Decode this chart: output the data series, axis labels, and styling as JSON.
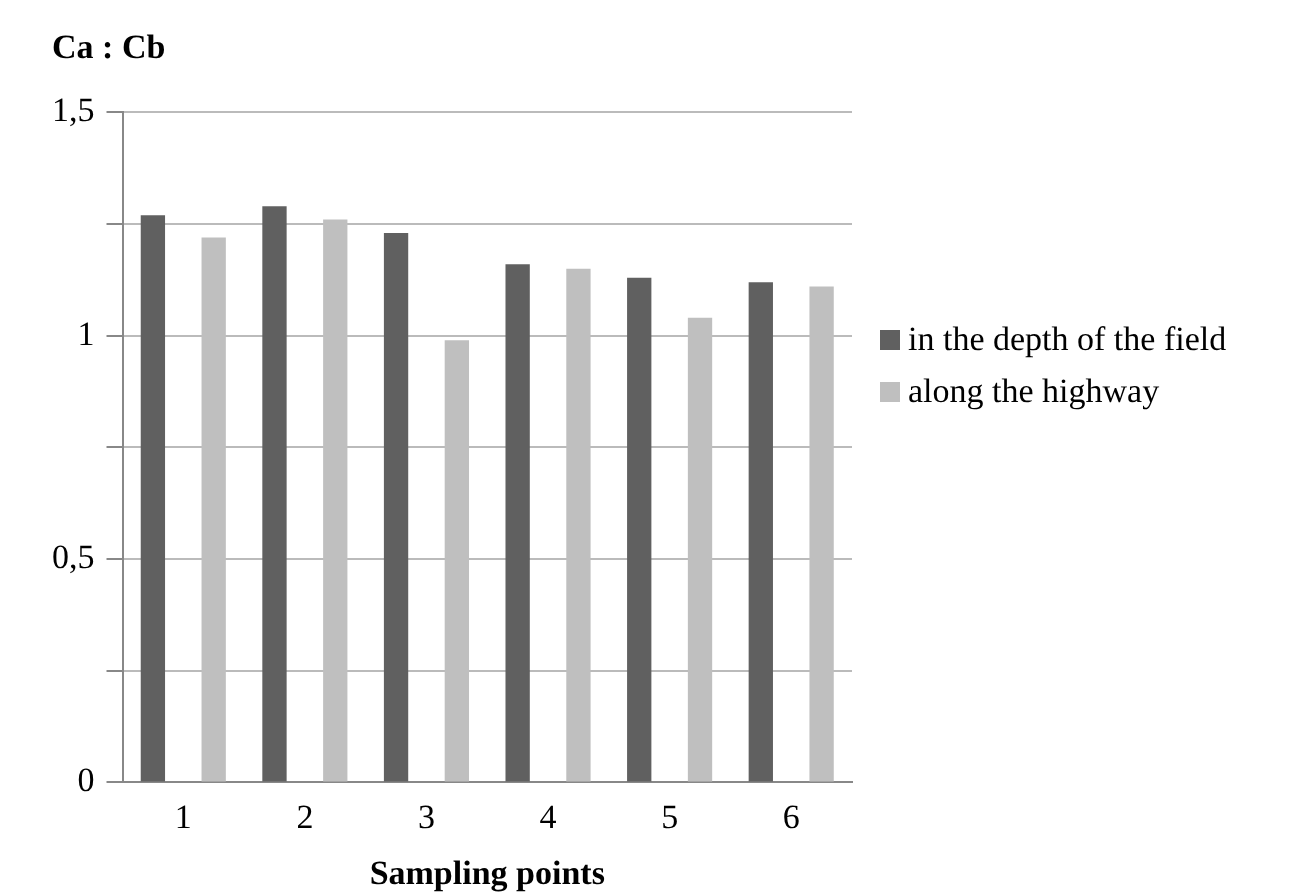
{
  "chart_data": {
    "type": "bar",
    "title": "Ca : Cb",
    "xlabel": "Sampling points",
    "categories": [
      "1",
      "2",
      "3",
      "4",
      "5",
      "6"
    ],
    "series": [
      {
        "name": "in the depth of the field",
        "color": "#606060",
        "values": [
          1.27,
          1.29,
          1.23,
          1.16,
          1.13,
          1.12
        ]
      },
      {
        "name": "along the highway",
        "color": "#bfbfbf",
        "values": [
          1.22,
          1.26,
          0.99,
          1.15,
          1.04,
          1.11
        ]
      }
    ],
    "ylim": [
      0,
      1.5
    ],
    "yticks": [
      0,
      {
        "value": 0.25,
        "label": null
      },
      {
        "value": 0.5,
        "label": "0,5"
      },
      {
        "value": 0.75,
        "label": null
      },
      1,
      {
        "value": 1.25,
        "label": null
      },
      {
        "value": 1.5,
        "label": "1,5"
      }
    ],
    "grid": "y",
    "legend": "right"
  }
}
